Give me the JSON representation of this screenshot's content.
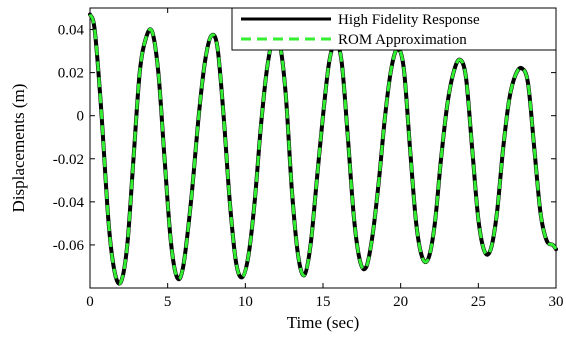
{
  "chart_data": {
    "type": "line",
    "title": "",
    "xlabel": "Time (sec)",
    "ylabel": "Displacements (m)",
    "xlim": [
      0,
      30
    ],
    "ylim": [
      -0.08,
      0.05
    ],
    "xticks": [
      0,
      5,
      10,
      15,
      20,
      25,
      30
    ],
    "xtick_labels": [
      "0",
      "5",
      "10",
      "15",
      "20",
      "25",
      "30"
    ],
    "yticks": [
      0.04,
      0.02,
      0,
      -0.02,
      -0.04,
      -0.06
    ],
    "ytick_labels": [
      "0.04",
      "0.02",
      "0",
      "-0.02",
      "-0.04",
      "-0.06"
    ],
    "grid": false,
    "legend_position": "top-right",
    "series": [
      {
        "name": "High Fidelity Response",
        "color": "#000000",
        "style": "solid",
        "x": [
          0,
          0.3,
          0.7,
          1.2,
          1.6,
          2.0,
          2.4,
          2.8,
          3.2,
          3.6,
          4.0,
          4.4,
          4.8,
          5.2,
          5.6,
          6.0,
          6.5,
          7.0,
          7.4,
          7.8,
          8.2,
          8.6,
          9.0,
          9.4,
          9.8,
          10.2,
          10.6,
          11.0,
          11.4,
          11.8,
          12.2,
          12.6,
          13.0,
          13.4,
          13.8,
          14.2,
          14.6,
          15.0,
          15.4,
          15.8,
          16.2,
          16.6,
          17.0,
          17.4,
          17.8,
          18.2,
          18.6,
          19.0,
          19.4,
          19.8,
          20.2,
          20.6,
          21.0,
          21.4,
          21.8,
          22.2,
          22.6,
          23.0,
          23.4,
          23.8,
          24.2,
          24.6,
          25.0,
          25.4,
          25.8,
          26.2,
          26.6,
          27.0,
          27.4,
          27.8,
          28.2,
          28.6,
          29.0,
          29.4,
          29.8,
          30.0
        ],
        "y": [
          0.047,
          0.04,
          0.005,
          -0.05,
          -0.073,
          -0.077,
          -0.06,
          -0.02,
          0.02,
          0.036,
          0.039,
          0.02,
          -0.02,
          -0.058,
          -0.075,
          -0.07,
          -0.04,
          0.0,
          0.025,
          0.037,
          0.032,
          0.0,
          -0.04,
          -0.068,
          -0.075,
          -0.065,
          -0.04,
          -0.005,
          0.022,
          0.036,
          0.034,
          0.01,
          -0.035,
          -0.065,
          -0.074,
          -0.06,
          -0.03,
          0.0,
          0.025,
          0.034,
          0.025,
          -0.01,
          -0.048,
          -0.068,
          -0.07,
          -0.055,
          -0.03,
          0.0,
          0.022,
          0.031,
          0.022,
          -0.015,
          -0.05,
          -0.066,
          -0.066,
          -0.05,
          -0.02,
          0.005,
          0.02,
          0.026,
          0.018,
          -0.015,
          -0.048,
          -0.063,
          -0.062,
          -0.045,
          -0.015,
          0.008,
          0.019,
          0.022,
          0.015,
          -0.015,
          -0.045,
          -0.058,
          -0.06,
          -0.062
        ]
      },
      {
        "name": "ROM Approximation",
        "color": "#33ee33",
        "style": "dashed",
        "x": [
          0,
          0.3,
          0.7,
          1.2,
          1.6,
          2.0,
          2.4,
          2.8,
          3.2,
          3.6,
          4.0,
          4.4,
          4.8,
          5.2,
          5.6,
          6.0,
          6.5,
          7.0,
          7.4,
          7.8,
          8.2,
          8.6,
          9.0,
          9.4,
          9.8,
          10.2,
          10.6,
          11.0,
          11.4,
          11.8,
          12.2,
          12.6,
          13.0,
          13.4,
          13.8,
          14.2,
          14.6,
          15.0,
          15.4,
          15.8,
          16.2,
          16.6,
          17.0,
          17.4,
          17.8,
          18.2,
          18.6,
          19.0,
          19.4,
          19.8,
          20.2,
          20.6,
          21.0,
          21.4,
          21.8,
          22.2,
          22.6,
          23.0,
          23.4,
          23.8,
          24.2,
          24.6,
          25.0,
          25.4,
          25.8,
          26.2,
          26.6,
          27.0,
          27.4,
          27.8,
          28.2,
          28.6,
          29.0,
          29.4,
          29.8,
          30.0
        ],
        "y": [
          0.047,
          0.04,
          0.005,
          -0.05,
          -0.073,
          -0.077,
          -0.06,
          -0.02,
          0.02,
          0.036,
          0.039,
          0.02,
          -0.02,
          -0.058,
          -0.075,
          -0.07,
          -0.04,
          0.0,
          0.025,
          0.037,
          0.032,
          0.0,
          -0.04,
          -0.068,
          -0.075,
          -0.065,
          -0.04,
          -0.005,
          0.022,
          0.036,
          0.034,
          0.01,
          -0.035,
          -0.065,
          -0.074,
          -0.06,
          -0.03,
          0.0,
          0.025,
          0.034,
          0.025,
          -0.01,
          -0.048,
          -0.068,
          -0.07,
          -0.055,
          -0.03,
          0.0,
          0.022,
          0.031,
          0.022,
          -0.015,
          -0.05,
          -0.066,
          -0.066,
          -0.05,
          -0.02,
          0.005,
          0.02,
          0.026,
          0.018,
          -0.015,
          -0.048,
          -0.063,
          -0.062,
          -0.045,
          -0.015,
          0.008,
          0.019,
          0.022,
          0.015,
          -0.015,
          -0.045,
          -0.058,
          -0.06,
          -0.062
        ]
      }
    ]
  }
}
